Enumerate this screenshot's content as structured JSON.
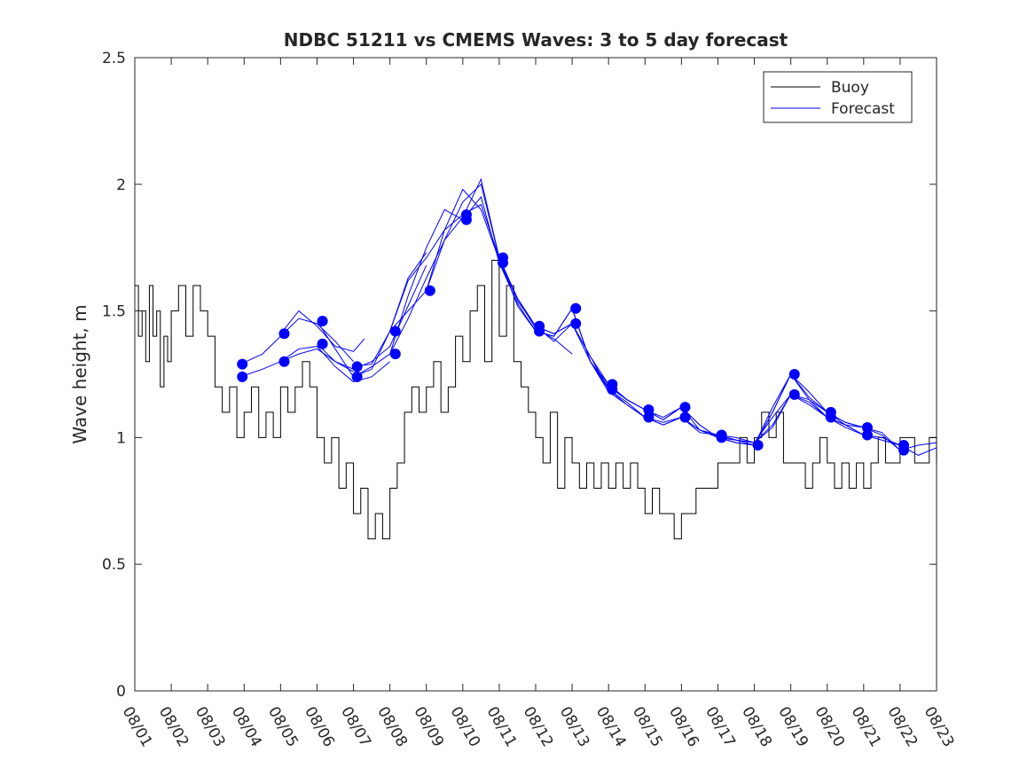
{
  "chart_data": {
    "type": "line",
    "title": "NDBC 51211 vs CMEMS Waves: 3 to 5 day forecast",
    "xlabel": "",
    "ylabel": "Wave height, m",
    "xlim": [
      0,
      22
    ],
    "ylim": [
      0,
      2.5
    ],
    "xticks": [
      0,
      1,
      2,
      3,
      4,
      5,
      6,
      7,
      8,
      9,
      10,
      11,
      12,
      13,
      14,
      15,
      16,
      17,
      18,
      19,
      20,
      21,
      22
    ],
    "xtick_labels": [
      "08/01",
      "08/02",
      "08/03",
      "08/04",
      "08/05",
      "08/06",
      "08/07",
      "08/08",
      "08/09",
      "08/10",
      "08/11",
      "08/12",
      "08/13",
      "08/14",
      "08/15",
      "08/16",
      "08/17",
      "08/18",
      "08/19",
      "08/20",
      "08/21",
      "08/22",
      "08/23"
    ],
    "yticks": [
      0,
      0.5,
      1,
      1.5,
      2,
      2.5
    ],
    "ytick_labels": [
      "0",
      "0.5",
      "1",
      "1.5",
      "2",
      "2.5"
    ],
    "grid": false,
    "legend": {
      "position": "top-right",
      "entries": [
        {
          "label": "Buoy",
          "color": "#000000"
        },
        {
          "label": "Forecast",
          "color": "#0000ff"
        }
      ]
    },
    "buoy_color": "#000000",
    "forecast_color": "#0000ff",
    "buoy": {
      "name": "Buoy",
      "x": [
        0,
        0.1,
        0.2,
        0.3,
        0.4,
        0.5,
        0.6,
        0.7,
        0.8,
        0.9,
        1.0,
        1.2,
        1.4,
        1.6,
        1.8,
        2.0,
        2.2,
        2.4,
        2.6,
        2.8,
        3.0,
        3.2,
        3.4,
        3.6,
        3.8,
        4.0,
        4.2,
        4.4,
        4.6,
        4.8,
        5.0,
        5.2,
        5.4,
        5.6,
        5.8,
        6.0,
        6.2,
        6.4,
        6.6,
        6.8,
        7.0,
        7.2,
        7.4,
        7.6,
        7.8,
        8.0,
        8.2,
        8.4,
        8.6,
        8.8,
        9.0,
        9.2,
        9.4,
        9.6,
        9.8,
        10.0,
        10.2,
        10.4,
        10.6,
        10.8,
        11.0,
        11.2,
        11.4,
        11.6,
        11.8,
        12.0,
        12.2,
        12.4,
        12.6,
        12.8,
        13.0,
        13.2,
        13.4,
        13.6,
        13.8,
        14.0,
        14.2,
        14.4,
        14.6,
        14.8,
        15.0,
        15.2,
        15.4,
        15.6,
        15.8,
        16.0,
        16.2,
        16.4,
        16.6,
        16.8,
        17.0,
        17.2,
        17.4,
        17.6,
        17.8,
        18.0,
        18.2,
        18.4,
        18.6,
        18.8,
        19.0,
        19.2,
        19.4,
        19.6,
        19.8,
        20.0,
        20.2,
        20.4,
        20.6,
        20.8,
        21.0,
        21.2,
        21.4,
        21.6,
        21.8,
        22.0
      ],
      "y": [
        1.6,
        1.4,
        1.5,
        1.3,
        1.6,
        1.4,
        1.5,
        1.2,
        1.4,
        1.3,
        1.5,
        1.6,
        1.4,
        1.6,
        1.5,
        1.4,
        1.2,
        1.1,
        1.2,
        1.0,
        1.1,
        1.2,
        1.0,
        1.1,
        1.0,
        1.2,
        1.1,
        1.2,
        1.3,
        1.2,
        1.0,
        0.9,
        1.0,
        0.8,
        0.9,
        0.7,
        0.8,
        0.6,
        0.7,
        0.6,
        0.8,
        0.9,
        1.1,
        1.2,
        1.1,
        1.2,
        1.3,
        1.1,
        1.2,
        1.4,
        1.3,
        1.5,
        1.6,
        1.3,
        1.7,
        1.4,
        1.6,
        1.3,
        1.2,
        1.1,
        1.0,
        0.9,
        1.1,
        0.8,
        1.0,
        0.9,
        0.8,
        0.9,
        0.8,
        0.9,
        0.8,
        0.9,
        0.8,
        0.9,
        0.8,
        0.7,
        0.8,
        0.7,
        0.7,
        0.6,
        0.7,
        0.7,
        0.8,
        0.8,
        0.8,
        0.9,
        0.9,
        0.9,
        1.0,
        0.9,
        1.0,
        1.1,
        1.0,
        1.1,
        0.9,
        0.9,
        0.9,
        0.8,
        0.9,
        1.0,
        0.9,
        0.8,
        0.9,
        0.8,
        0.9,
        0.8,
        0.9,
        1.0,
        0.9,
        0.9,
        1.0,
        1.0,
        0.9,
        0.9,
        1.0,
        0.9
      ]
    },
    "forecast_runs": [
      {
        "x": [
          2.9,
          3.5,
          4.0,
          4.5,
          5.0,
          5.5,
          6.0
        ],
        "y": [
          1.24,
          1.27,
          1.3,
          1.33,
          1.35,
          1.3,
          1.26
        ]
      },
      {
        "x": [
          2.9,
          3.5,
          4.0,
          4.5,
          5.0,
          5.5,
          6.0
        ],
        "y": [
          1.29,
          1.33,
          1.4,
          1.47,
          1.45,
          1.38,
          1.3
        ]
      },
      {
        "x": [
          4.0,
          4.5,
          5.0,
          5.5,
          6.0,
          6.5,
          7.0
        ],
        "y": [
          1.3,
          1.35,
          1.36,
          1.28,
          1.22,
          1.24,
          1.3
        ]
      },
      {
        "x": [
          4.0,
          4.5,
          5.0,
          5.5,
          6.0,
          6.3
        ],
        "y": [
          1.41,
          1.5,
          1.44,
          1.36,
          1.34,
          1.39
        ]
      },
      {
        "x": [
          5.0,
          5.5,
          6.0,
          6.5,
          7.0,
          7.5,
          8.0
        ],
        "y": [
          1.46,
          1.35,
          1.24,
          1.27,
          1.42,
          1.63,
          1.73
        ]
      },
      {
        "x": [
          5.0,
          5.5,
          6.0,
          6.5,
          7.0,
          7.5,
          8.0
        ],
        "y": [
          1.37,
          1.3,
          1.27,
          1.3,
          1.36,
          1.52,
          1.68
        ]
      },
      {
        "x": [
          6.0,
          6.5,
          7.0,
          7.5,
          8.0,
          8.5,
          9.0
        ],
        "y": [
          1.24,
          1.28,
          1.33,
          1.56,
          1.75,
          1.9,
          1.86
        ]
      },
      {
        "x": [
          6.0,
          6.5,
          7.0,
          7.5,
          8.0,
          8.5,
          9.0
        ],
        "y": [
          1.28,
          1.29,
          1.42,
          1.62,
          1.71,
          1.82,
          1.88
        ]
      },
      {
        "x": [
          7.0,
          7.5,
          8.0,
          8.5,
          9.0,
          9.5,
          10.0
        ],
        "y": [
          1.33,
          1.47,
          1.63,
          1.78,
          1.93,
          2.0,
          1.71
        ]
      },
      {
        "x": [
          7.0,
          7.5,
          8.0,
          8.5,
          9.0,
          9.5,
          10.0
        ],
        "y": [
          1.42,
          1.5,
          1.58,
          1.82,
          1.98,
          1.9,
          1.7
        ]
      },
      {
        "x": [
          8.0,
          8.5,
          9.0,
          9.5,
          10.0,
          10.5,
          11.0
        ],
        "y": [
          1.58,
          1.78,
          1.87,
          2.02,
          1.71,
          1.52,
          1.42
        ]
      },
      {
        "x": [
          9.0,
          9.5,
          10.0,
          10.5,
          11.0,
          11.5,
          12.0
        ],
        "y": [
          1.86,
          1.95,
          1.69,
          1.55,
          1.43,
          1.39,
          1.33
        ]
      },
      {
        "x": [
          9.0,
          9.5,
          10.0,
          10.5,
          11.0,
          11.5,
          12.0
        ],
        "y": [
          1.88,
          1.92,
          1.71,
          1.54,
          1.44,
          1.41,
          1.45
        ]
      },
      {
        "x": [
          10.0,
          10.5,
          11.0,
          11.5,
          12.0,
          12.5,
          13.0
        ],
        "y": [
          1.71,
          1.55,
          1.44,
          1.38,
          1.45,
          1.32,
          1.21
        ]
      },
      {
        "x": [
          10.0,
          10.5,
          11.0,
          11.5,
          12.0,
          12.5,
          13.0
        ],
        "y": [
          1.69,
          1.53,
          1.42,
          1.4,
          1.51,
          1.3,
          1.19
        ]
      },
      {
        "x": [
          11.0,
          11.5,
          12.0,
          12.5,
          13.0,
          13.5,
          14.0
        ],
        "y": [
          1.44,
          1.41,
          1.45,
          1.3,
          1.2,
          1.15,
          1.11
        ]
      },
      {
        "x": [
          11.0,
          11.5,
          12.0,
          12.5,
          13.0,
          13.5,
          14.0
        ],
        "y": [
          1.42,
          1.4,
          1.51,
          1.3,
          1.18,
          1.13,
          1.08
        ]
      },
      {
        "x": [
          12.0,
          12.5,
          13.0,
          13.5,
          14.0,
          14.5,
          15.0
        ],
        "y": [
          1.51,
          1.3,
          1.21,
          1.15,
          1.11,
          1.08,
          1.12
        ]
      },
      {
        "x": [
          12.0,
          12.5,
          13.0,
          13.5,
          14.0,
          14.5,
          15.0
        ],
        "y": [
          1.45,
          1.32,
          1.19,
          1.14,
          1.08,
          1.06,
          1.08
        ]
      },
      {
        "x": [
          13.0,
          13.5,
          14.0,
          14.5,
          15.0,
          15.5,
          16.0
        ],
        "y": [
          1.21,
          1.15,
          1.11,
          1.07,
          1.12,
          1.05,
          1.0
        ]
      },
      {
        "x": [
          13.0,
          13.5,
          14.0,
          14.5,
          15.0,
          15.5,
          16.0
        ],
        "y": [
          1.19,
          1.13,
          1.08,
          1.05,
          1.08,
          1.03,
          1.01
        ]
      },
      {
        "x": [
          14.0,
          14.5,
          15.0,
          15.5,
          16.0,
          16.5,
          17.0
        ],
        "y": [
          1.11,
          1.07,
          1.12,
          1.03,
          1.0,
          0.99,
          0.97
        ]
      },
      {
        "x": [
          14.0,
          14.5,
          15.0,
          15.5,
          16.0,
          16.5,
          17.0
        ],
        "y": [
          1.08,
          1.05,
          1.08,
          1.02,
          1.01,
          1.0,
          0.98
        ]
      },
      {
        "x": [
          15.0,
          15.5,
          16.0,
          16.5,
          17.0,
          17.5,
          18.0
        ],
        "y": [
          1.12,
          1.05,
          1.0,
          0.98,
          0.97,
          1.1,
          1.25
        ]
      },
      {
        "x": [
          15.0,
          15.5,
          16.0,
          16.5,
          17.0,
          17.5,
          18.0
        ],
        "y": [
          1.08,
          1.03,
          1.01,
          0.99,
          0.98,
          1.05,
          1.17
        ]
      },
      {
        "x": [
          16.0,
          16.5,
          17.0,
          17.5,
          18.0,
          18.5,
          19.0
        ],
        "y": [
          1.0,
          0.98,
          0.97,
          1.12,
          1.25,
          1.18,
          1.1
        ]
      },
      {
        "x": [
          16.0,
          16.5,
          17.0,
          17.5,
          18.0,
          18.5,
          19.0
        ],
        "y": [
          1.01,
          0.99,
          0.98,
          1.08,
          1.17,
          1.15,
          1.08
        ]
      },
      {
        "x": [
          17.0,
          17.5,
          18.0,
          18.5,
          19.0,
          19.5,
          20.0
        ],
        "y": [
          0.97,
          1.1,
          1.25,
          1.15,
          1.1,
          1.06,
          1.04
        ]
      },
      {
        "x": [
          17.0,
          17.5,
          18.0,
          18.5,
          19.0,
          19.5,
          20.0
        ],
        "y": [
          0.98,
          1.04,
          1.17,
          1.14,
          1.08,
          1.05,
          1.01
        ]
      },
      {
        "x": [
          18.0,
          18.5,
          19.0,
          19.5,
          20.0,
          20.5,
          21.0
        ],
        "y": [
          1.25,
          1.16,
          1.1,
          1.06,
          1.04,
          1.02,
          0.95
        ]
      },
      {
        "x": [
          18.0,
          18.5,
          19.0,
          19.5,
          20.0,
          20.5,
          21.0
        ],
        "y": [
          1.17,
          1.13,
          1.08,
          1.05,
          1.01,
          0.99,
          0.97
        ]
      },
      {
        "x": [
          19.0,
          19.5,
          20.0,
          20.5,
          21.0,
          21.5,
          22.0
        ],
        "y": [
          1.1,
          1.05,
          1.04,
          1.01,
          0.95,
          0.97,
          0.98
        ]
      },
      {
        "x": [
          19.0,
          19.5,
          20.0,
          20.5,
          21.0,
          21.5,
          22.0
        ],
        "y": [
          1.08,
          1.04,
          1.01,
          1.0,
          0.97,
          0.93,
          0.96
        ]
      }
    ],
    "forecast_markers": [
      {
        "x": 2.95,
        "y": 1.29
      },
      {
        "x": 2.95,
        "y": 1.24
      },
      {
        "x": 4.1,
        "y": 1.41
      },
      {
        "x": 4.1,
        "y": 1.3
      },
      {
        "x": 5.15,
        "y": 1.46
      },
      {
        "x": 5.15,
        "y": 1.37
      },
      {
        "x": 6.1,
        "y": 1.28
      },
      {
        "x": 6.1,
        "y": 1.24
      },
      {
        "x": 7.15,
        "y": 1.42
      },
      {
        "x": 7.15,
        "y": 1.33
      },
      {
        "x": 8.1,
        "y": 1.58
      },
      {
        "x": 9.1,
        "y": 1.88
      },
      {
        "x": 9.1,
        "y": 1.86
      },
      {
        "x": 10.1,
        "y": 1.71
      },
      {
        "x": 10.1,
        "y": 1.69
      },
      {
        "x": 11.1,
        "y": 1.44
      },
      {
        "x": 11.1,
        "y": 1.42
      },
      {
        "x": 12.1,
        "y": 1.51
      },
      {
        "x": 12.1,
        "y": 1.45
      },
      {
        "x": 13.1,
        "y": 1.21
      },
      {
        "x": 13.1,
        "y": 1.19
      },
      {
        "x": 14.1,
        "y": 1.11
      },
      {
        "x": 14.1,
        "y": 1.08
      },
      {
        "x": 15.1,
        "y": 1.12
      },
      {
        "x": 15.1,
        "y": 1.08
      },
      {
        "x": 16.1,
        "y": 1.01
      },
      {
        "x": 16.1,
        "y": 1.0
      },
      {
        "x": 17.1,
        "y": 0.97
      },
      {
        "x": 18.1,
        "y": 1.25
      },
      {
        "x": 18.1,
        "y": 1.17
      },
      {
        "x": 19.1,
        "y": 1.1
      },
      {
        "x": 19.1,
        "y": 1.08
      },
      {
        "x": 20.1,
        "y": 1.04
      },
      {
        "x": 20.1,
        "y": 1.01
      },
      {
        "x": 21.1,
        "y": 0.97
      },
      {
        "x": 21.1,
        "y": 0.95
      }
    ]
  }
}
